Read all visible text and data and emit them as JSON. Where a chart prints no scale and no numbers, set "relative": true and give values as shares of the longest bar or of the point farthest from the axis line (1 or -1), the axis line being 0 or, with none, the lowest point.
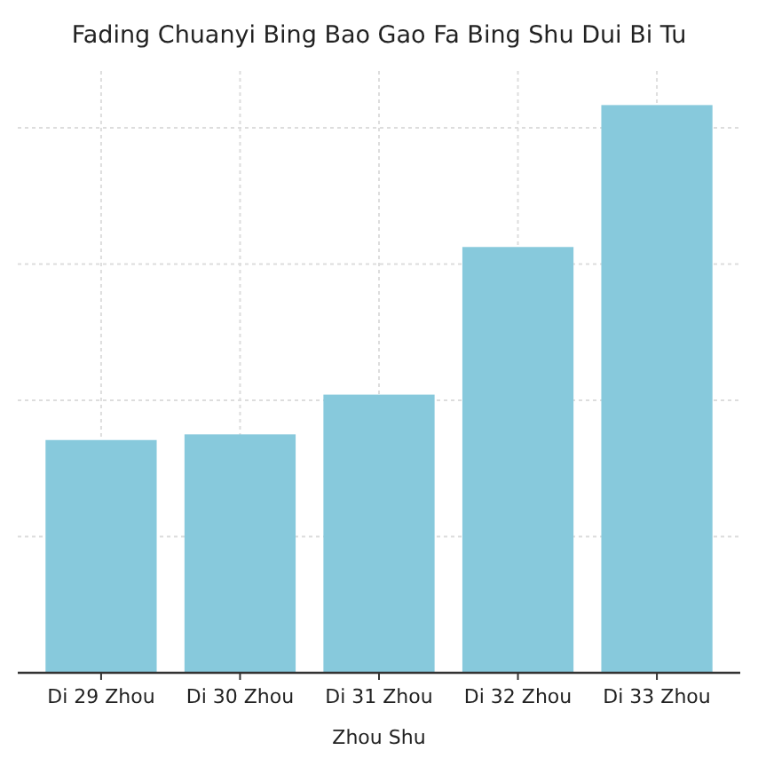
{
  "chart_data": {
    "type": "bar",
    "title": "Fading Chuanyi Bing Bao Gao Fa Bing Shu Dui Bi Tu",
    "xlabel": "Zhou Shu",
    "categories": [
      "Di 29 Zhou",
      "Di 30 Zhou",
      "Di 31 Zhou",
      "Di 32 Zhou",
      "Di 33 Zhou"
    ],
    "values": [
      0.41,
      0.42,
      0.49,
      0.75,
      1
    ],
    "color": "#87c9dc",
    "relative": true,
    "grid": true
  }
}
